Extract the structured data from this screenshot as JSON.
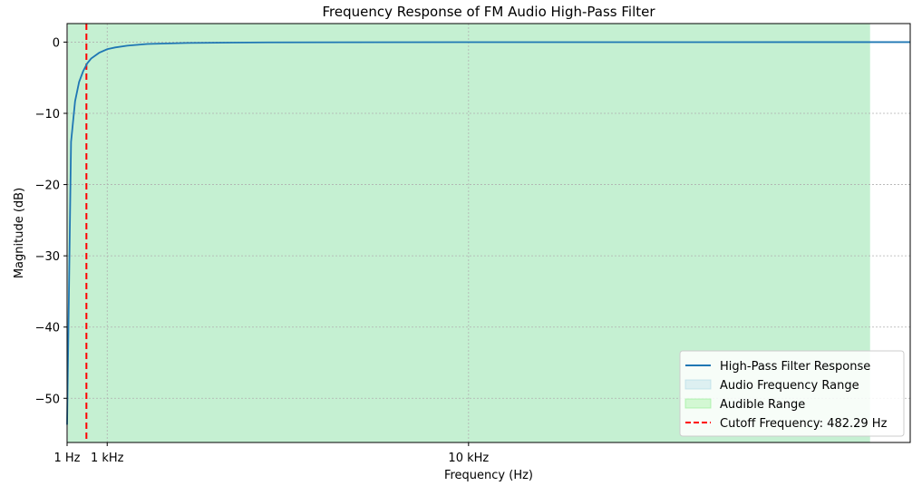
{
  "chart_data": {
    "type": "line",
    "title": "Frequency Response of FM Audio High-Pass Filter",
    "xlabel": "Frequency (Hz)",
    "ylabel": "Magnitude (dB)",
    "xlim": [
      1,
      21000
    ],
    "ylim": [
      -56.2,
      2.6
    ],
    "xticks": [
      {
        "value": 1,
        "label": "1 Hz"
      },
      {
        "value": 1000,
        "label": "1 kHz"
      },
      {
        "value": 10000,
        "label": "10 kHz"
      }
    ],
    "yticks": [
      {
        "value": 0,
        "label": "0"
      },
      {
        "value": -10,
        "label": "−10"
      },
      {
        "value": -20,
        "label": "−20"
      },
      {
        "value": -30,
        "label": "−30"
      },
      {
        "value": -40,
        "label": "−40"
      },
      {
        "value": -50,
        "label": "−50"
      }
    ],
    "grid": true,
    "legend_position": "lower-right",
    "series": [
      {
        "name": "High-Pass Filter Response",
        "color": "#1f77b4",
        "x": [
          1,
          100,
          200,
          300,
          400,
          500,
          600,
          800,
          1000,
          1200,
          1500,
          2000,
          3000,
          5000,
          10000,
          15000,
          21000
        ],
        "y": [
          -53.7,
          -14.0,
          -8.3,
          -5.6,
          -4.1,
          -3.0,
          -2.3,
          -1.5,
          -1.0,
          -0.75,
          -0.5,
          -0.26,
          -0.12,
          -0.04,
          -0.01,
          -0.005,
          -0.002
        ]
      }
    ],
    "shaded_regions": [
      {
        "name": "Audio Frequency Range",
        "x_start": 20,
        "x_end": 20000,
        "color": "#add8e6",
        "opacity": 0.35
      },
      {
        "name": "Audible Range",
        "x_start": 20,
        "x_end": 20000,
        "color": "#90ee90",
        "opacity": 0.35
      }
    ],
    "vertical_lines": [
      {
        "name": "Cutoff Frequency: 482.29 Hz",
        "x": 482.29,
        "color": "#ff0000",
        "dash": true
      }
    ]
  }
}
